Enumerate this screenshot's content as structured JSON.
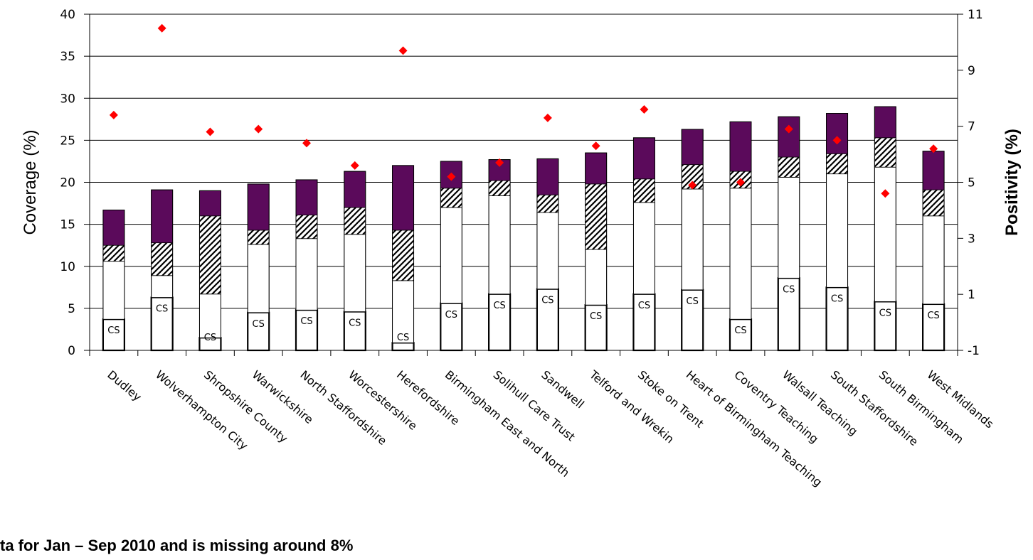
{
  "chart_data": {
    "type": "bar",
    "stacked": true,
    "categories": [
      "Dudley",
      "Wolverhampton City",
      "Shropshire County",
      "Warwickshire",
      "North Staffordshire",
      "Worcestershire",
      "Herefordshire",
      "Birmingham East and North",
      "Solihull Care Trust",
      "Sandwell",
      "Telford and Wrekin",
      "Stoke on Trent",
      "Heart of Birmingham Teaching",
      "Coventry Teaching",
      "Walsall Teaching",
      "South Staffordshire",
      "South Birmingham",
      "West Midlands"
    ],
    "series": [
      {
        "values": [
          3.7,
          6.3,
          1.5,
          4.5,
          4.8,
          4.6,
          0.9,
          5.6,
          6.7,
          7.3,
          5.4,
          6.7,
          7.2,
          3.7,
          8.6,
          7.5,
          5.8,
          5.5
        ],
        "color": "#ffffff",
        "outline": true,
        "label": "CS"
      },
      {
        "values": [
          6.9,
          2.6,
          5.2,
          8.1,
          8.5,
          9.2,
          7.4,
          11.4,
          11.7,
          9.1,
          6.6,
          10.9,
          12.0,
          15.6,
          12.0,
          13.5,
          16.0,
          10.5
        ],
        "color": "#ffffff"
      },
      {
        "values": [
          1.9,
          3.9,
          9.3,
          1.7,
          2.8,
          3.2,
          6.0,
          2.3,
          1.8,
          2.1,
          7.8,
          2.8,
          2.9,
          2.0,
          2.4,
          2.4,
          3.5,
          3.1
        ],
        "pattern": "hatched"
      },
      {
        "values": [
          4.2,
          6.3,
          3.0,
          5.5,
          4.2,
          4.3,
          7.7,
          3.2,
          2.5,
          4.3,
          3.7,
          4.9,
          4.2,
          5.9,
          4.8,
          4.8,
          3.7,
          4.6
        ],
        "color": "#5b0a5b"
      }
    ],
    "positivity": {
      "values": [
        7.4,
        10.5,
        6.8,
        6.9,
        6.4,
        5.6,
        9.7,
        5.2,
        5.7,
        7.3,
        6.3,
        7.6,
        4.9,
        5.0,
        6.9,
        6.5,
        4.6,
        6.2
      ],
      "color": "#ff0000",
      "marker": "diamond"
    },
    "ylabel": "Coverage (%)",
    "y2label": "Positivity (%)",
    "ylim": [
      0,
      40
    ],
    "y2lim": [
      -1,
      11
    ],
    "yticks": [
      "0",
      "5",
      "10",
      "15",
      "20",
      "25",
      "30",
      "35",
      "40"
    ],
    "y2ticks": [
      "-1",
      "1",
      "3",
      "5",
      "7",
      "9",
      "11"
    ],
    "grid": true
  },
  "footnote": "ta for Jan – Sep 2010 and is missing around 8%"
}
